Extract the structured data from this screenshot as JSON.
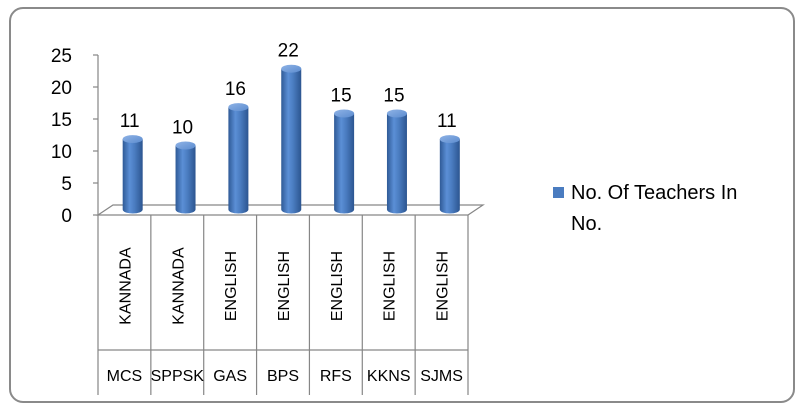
{
  "chart_data": {
    "type": "bar",
    "style": "3d-cylinder",
    "categories": [
      {
        "school": "MCS",
        "medium": "KANNADA"
      },
      {
        "school": "SPPSK",
        "medium": "KANNADA"
      },
      {
        "school": "GAS",
        "medium": "ENGLISH"
      },
      {
        "school": "BPS",
        "medium": "ENGLISH"
      },
      {
        "school": "RFS",
        "medium": "ENGLISH"
      },
      {
        "school": "KKNS",
        "medium": "ENGLISH"
      },
      {
        "school": "SJMS",
        "medium": "ENGLISH"
      }
    ],
    "series": [
      {
        "name": "No. Of Teachers In No.",
        "values": [
          11,
          10,
          16,
          22,
          15,
          15,
          11
        ],
        "color": "#4a7cc0"
      }
    ],
    "ylim": [
      0,
      25
    ],
    "yticks": [
      0,
      5,
      10,
      15,
      20,
      25
    ],
    "data_labels": true,
    "legend": {
      "position": "right",
      "label_line1": "No. Of Teachers In",
      "label_line2": "No."
    },
    "grid": false,
    "colors": {
      "bar": "#4a7cc0",
      "bar_dark": "#2f5a96",
      "bar_light": "#7fa6dd",
      "axis": "#868686",
      "frame": "#8a8a8a"
    }
  }
}
